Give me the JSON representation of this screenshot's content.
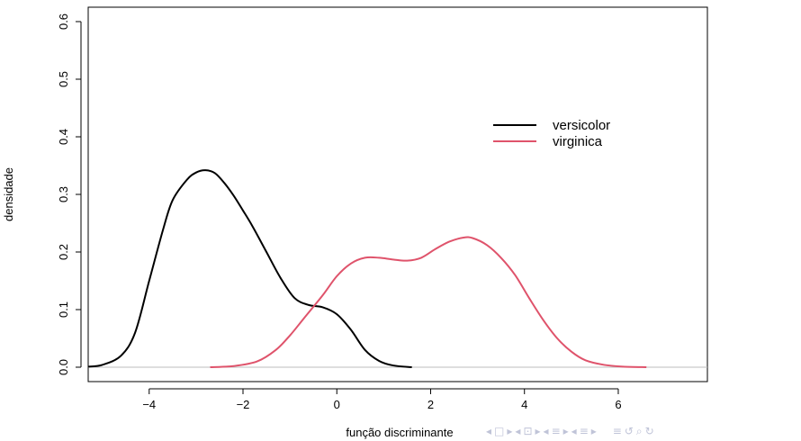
{
  "chart_data": {
    "type": "line",
    "title": "",
    "xlabel": "função discriminante",
    "ylabel": "densidade",
    "xlim": [
      -5.3,
      7.9
    ],
    "ylim": [
      -0.025,
      0.625
    ],
    "xticks": [
      -4,
      -2,
      0,
      2,
      4,
      6
    ],
    "xtick_labels": [
      "−4",
      "−2",
      "0",
      "2",
      "4",
      "6"
    ],
    "yticks": [
      0.0,
      0.1,
      0.2,
      0.3,
      0.4,
      0.5,
      0.6
    ],
    "ytick_labels": [
      "0.0",
      "0.1",
      "0.2",
      "0.3",
      "0.4",
      "0.5",
      "0.6"
    ],
    "grid": false,
    "legend_position": "upper-right",
    "baseline": 0.0,
    "baseline_color": "#bebebe",
    "series": [
      {
        "name": "versicolor",
        "color": "#000000",
        "points": [
          [
            -5.3,
            0.001
          ],
          [
            -5.0,
            0.004
          ],
          [
            -4.6,
            0.02
          ],
          [
            -4.3,
            0.06
          ],
          [
            -4.0,
            0.15
          ],
          [
            -3.7,
            0.24
          ],
          [
            -3.5,
            0.29
          ],
          [
            -3.2,
            0.325
          ],
          [
            -3.0,
            0.338
          ],
          [
            -2.8,
            0.342
          ],
          [
            -2.6,
            0.337
          ],
          [
            -2.4,
            0.32
          ],
          [
            -2.2,
            0.298
          ],
          [
            -2.0,
            0.272
          ],
          [
            -1.8,
            0.245
          ],
          [
            -1.5,
            0.2
          ],
          [
            -1.2,
            0.155
          ],
          [
            -0.9,
            0.12
          ],
          [
            -0.6,
            0.108
          ],
          [
            -0.3,
            0.104
          ],
          [
            0.0,
            0.092
          ],
          [
            0.3,
            0.065
          ],
          [
            0.6,
            0.03
          ],
          [
            0.9,
            0.011
          ],
          [
            1.2,
            0.003
          ],
          [
            1.6,
            0.0
          ]
        ]
      },
      {
        "name": "virginica",
        "color": "#df536b",
        "points": [
          [
            -2.7,
            0.0
          ],
          [
            -2.2,
            0.002
          ],
          [
            -1.7,
            0.01
          ],
          [
            -1.3,
            0.03
          ],
          [
            -1.0,
            0.055
          ],
          [
            -0.7,
            0.085
          ],
          [
            -0.3,
            0.125
          ],
          [
            0.0,
            0.158
          ],
          [
            0.3,
            0.18
          ],
          [
            0.6,
            0.19
          ],
          [
            0.9,
            0.19
          ],
          [
            1.2,
            0.187
          ],
          [
            1.5,
            0.185
          ],
          [
            1.8,
            0.19
          ],
          [
            2.1,
            0.205
          ],
          [
            2.4,
            0.218
          ],
          [
            2.7,
            0.225
          ],
          [
            2.9,
            0.224
          ],
          [
            3.2,
            0.212
          ],
          [
            3.5,
            0.19
          ],
          [
            3.8,
            0.16
          ],
          [
            4.1,
            0.12
          ],
          [
            4.4,
            0.082
          ],
          [
            4.7,
            0.05
          ],
          [
            5.0,
            0.027
          ],
          [
            5.3,
            0.012
          ],
          [
            5.7,
            0.004
          ],
          [
            6.1,
            0.001
          ],
          [
            6.6,
            0.0
          ]
        ]
      }
    ]
  },
  "nav_icons": [
    "◂",
    "□",
    "▸",
    "◂",
    "⊡",
    "▸",
    "◂",
    "≡",
    "▸",
    "◂",
    "≡",
    "▸",
    "≡",
    "↺",
    "⌕",
    "↻"
  ]
}
